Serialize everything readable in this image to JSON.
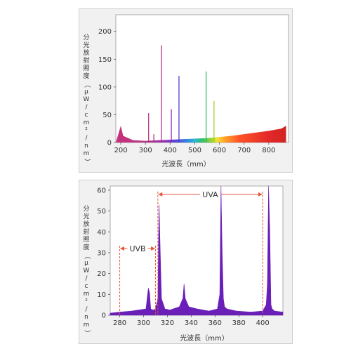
{
  "chart_data": [
    {
      "type": "line",
      "title": "",
      "xlabel": "光波長（mm）",
      "ylabel": "分光放射照度（μW/cm²/nm）",
      "xlim": [
        180,
        880
      ],
      "ylim": [
        0,
        230
      ],
      "x_ticks": [
        "200",
        "300",
        "400",
        "500",
        "600",
        "700",
        "800"
      ],
      "y_ticks": [
        "0",
        "50",
        "100",
        "150",
        "200"
      ],
      "grid": false,
      "baseline": [
        [
          180,
          0
        ],
        [
          200,
          30
        ],
        [
          210,
          12
        ],
        [
          250,
          4
        ],
        [
          300,
          3
        ],
        [
          350,
          4
        ],
        [
          400,
          5
        ],
        [
          450,
          6
        ],
        [
          500,
          7
        ],
        [
          550,
          8
        ],
        [
          600,
          10
        ],
        [
          650,
          12
        ],
        [
          700,
          15
        ],
        [
          750,
          18
        ],
        [
          800,
          21
        ],
        [
          850,
          25
        ],
        [
          870,
          30
        ]
      ],
      "peaks": [
        {
          "x": 313,
          "y": 53
        },
        {
          "x": 334,
          "y": 15
        },
        {
          "x": 365,
          "y": 175
        },
        {
          "x": 405,
          "y": 60
        },
        {
          "x": 436,
          "y": 120
        },
        {
          "x": 546,
          "y": 128
        },
        {
          "x": 578,
          "y": 75
        }
      ]
    },
    {
      "type": "line",
      "title": "",
      "xlabel": "光波長（mm）",
      "ylabel": "分光放射照度（μW/cm²/nm）",
      "xlim": [
        272,
        417
      ],
      "ylim": [
        0,
        62
      ],
      "x_ticks": [
        "280",
        "300",
        "320",
        "340",
        "360",
        "380",
        "400"
      ],
      "y_ticks": [
        "0",
        "10",
        "20",
        "30",
        "40",
        "50",
        "60"
      ],
      "grid": false,
      "series_color": "#6a1fb8",
      "series": [
        {
          "x": [
            272,
            280,
            290,
            296,
            302,
            304,
            305,
            306,
            308,
            310,
            312,
            313,
            314,
            315,
            318,
            322,
            330,
            333,
            334,
            335,
            338,
            345,
            355,
            362,
            364,
            365,
            366,
            367,
            368,
            370,
            378,
            390,
            400,
            403,
            404,
            405,
            406,
            407,
            408,
            410,
            417
          ],
          "y": [
            1,
            1.5,
            2,
            2.5,
            3,
            13,
            11,
            3,
            2.5,
            3,
            8,
            53,
            30,
            8,
            3,
            2.5,
            4,
            8,
            15,
            8,
            4,
            3,
            2,
            3,
            10,
            62,
            30,
            8,
            4,
            3,
            2,
            1.5,
            2,
            5,
            15,
            62,
            40,
            5,
            3,
            2,
            1.5
          ]
        }
      ],
      "annotations": [
        {
          "label": "UVB",
          "x_start": 280,
          "x_end": 310,
          "y": 32
        },
        {
          "label": "UVA",
          "x_start": 312,
          "x_end": 400,
          "y": 58
        }
      ],
      "band_colors": {
        "marker": "#e8543a"
      }
    }
  ]
}
